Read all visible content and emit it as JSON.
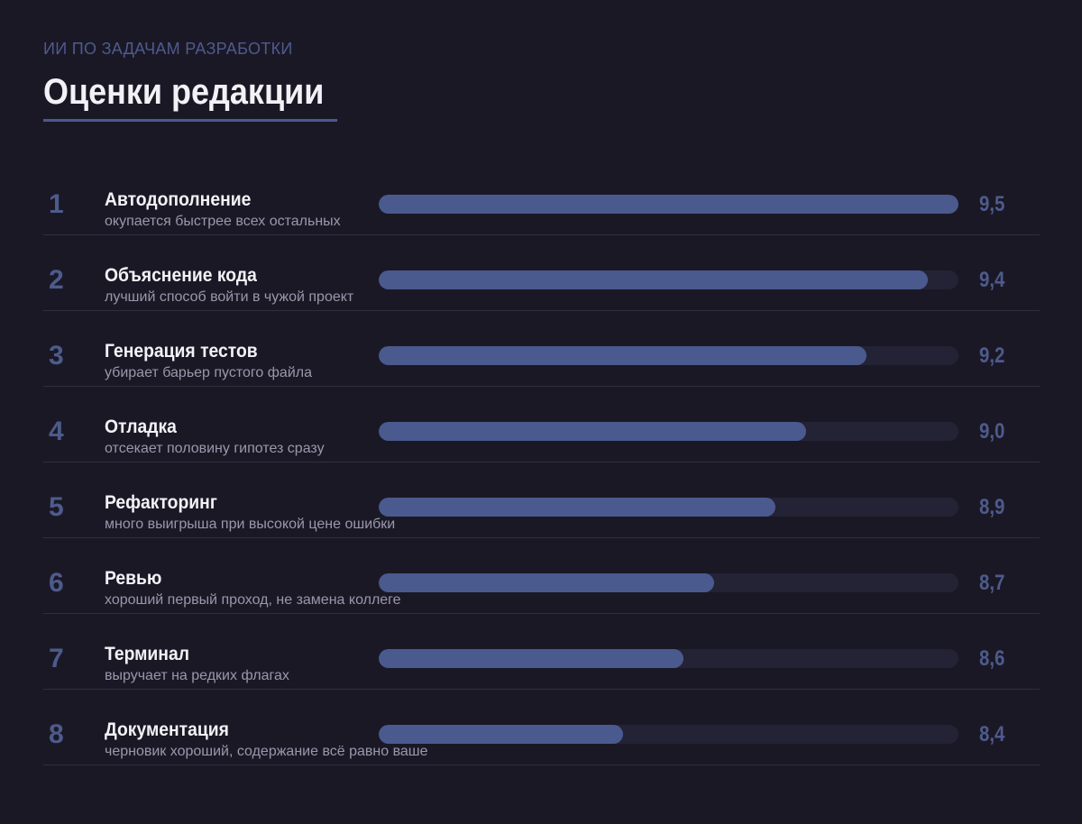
{
  "header": {
    "eyebrow": "ИИ ПО ЗАДАЧАМ РАЗРАБОТКИ",
    "title": "Оценки редакции"
  },
  "colors": {
    "background": "#1b1826",
    "accent": "#4a5a8e",
    "track": "#242235",
    "text": "#f2f2f6",
    "muted": "#9a97ac"
  },
  "chart_data": {
    "type": "bar",
    "orientation": "horizontal",
    "title": "Оценки редакции",
    "subtitle": "ИИ ПО ЗАДАЧАМ РАЗРАБОТКИ",
    "xlabel": "",
    "ylabel": "",
    "grid": false,
    "legend": "none",
    "categories": [
      "Автодополнение",
      "Объяснение кода",
      "Генерация тестов",
      "Отладка",
      "Рефакторинг",
      "Ревью",
      "Терминал",
      "Документация"
    ],
    "values": [
      9.5,
      9.4,
      9.2,
      9.0,
      8.9,
      8.7,
      8.6,
      8.4
    ],
    "value_labels": [
      "9,5",
      "9,4",
      "9,2",
      "9,0",
      "8,9",
      "8,7",
      "8,6",
      "8,4"
    ],
    "ranks": [
      "1",
      "2",
      "3",
      "4",
      "5",
      "6",
      "7",
      "8"
    ],
    "notes": [
      "окупается быстрее всех остальных",
      "лучший способ войти в чужой проект",
      "убирает барьер пустого файла",
      "отсекает половину гипотез сразу",
      "много выигрыша при высокой цене ошибки",
      "хороший первый проход, не замена коллеге",
      "выручает на редких флагах",
      "черновик хороший, содержание всё равно ваше"
    ],
    "xlim": [
      7.6,
      9.5
    ]
  }
}
